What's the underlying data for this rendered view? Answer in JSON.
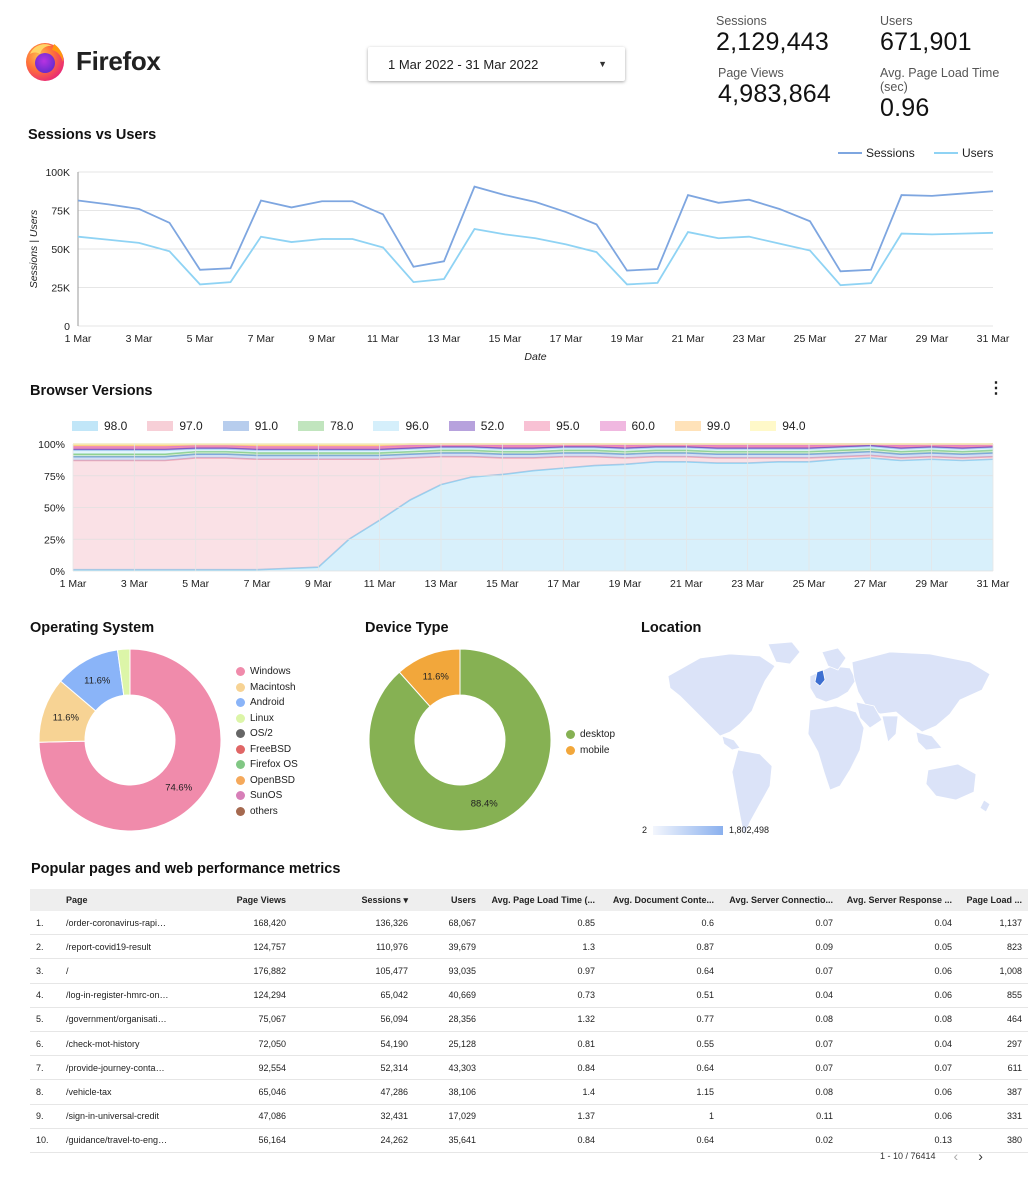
{
  "header": {
    "brand": "Firefox",
    "date_range": "1 Mar 2022 - 31 Mar 2022"
  },
  "kpis": {
    "sessions": {
      "label": "Sessions",
      "value": "2,129,443"
    },
    "users": {
      "label": "Users",
      "value": "671,901"
    },
    "page_views": {
      "label": "Page Views",
      "value": "4,983,864"
    },
    "load_time": {
      "label": "Avg. Page Load Time (sec)",
      "value": "0.96"
    }
  },
  "sections": {
    "sessions_users": "Sessions vs Users",
    "browser_versions": "Browser Versions",
    "os": "Operating System",
    "device": "Device Type",
    "location": "Location",
    "pages": "Popular pages and web performance metrics"
  },
  "colors": {
    "sessions": "#7ea6e0",
    "users": "#8fd3f4",
    "brand_orange": "#ff7139",
    "brand_purple": "#9059ff"
  },
  "chart_data": [
    {
      "type": "line",
      "title": "Sessions vs Users",
      "xlabel": "Date",
      "ylabel": "Sessions | Users",
      "ylim": [
        0,
        100000
      ],
      "yticks": [
        "0",
        "25K",
        "50K",
        "75K",
        "100K"
      ],
      "xticks": [
        "1 Mar",
        "3 Mar",
        "5 Mar",
        "7 Mar",
        "9 Mar",
        "11 Mar",
        "13 Mar",
        "15 Mar",
        "17 Mar",
        "19 Mar",
        "21 Mar",
        "23 Mar",
        "25 Mar",
        "27 Mar",
        "29 Mar",
        "31 Mar"
      ],
      "x": [
        1,
        2,
        3,
        4,
        5,
        6,
        7,
        8,
        9,
        10,
        11,
        12,
        13,
        14,
        15,
        16,
        17,
        18,
        19,
        20,
        21,
        22,
        23,
        24,
        25,
        26,
        27,
        28,
        29,
        30,
        31
      ],
      "legend": "top-right",
      "series": [
        {
          "name": "Sessions",
          "color": "#7ea6e0",
          "values": [
            81500,
            79000,
            76000,
            67000,
            36500,
            37500,
            81500,
            77000,
            81000,
            81000,
            72500,
            38500,
            42000,
            90500,
            85000,
            80500,
            74000,
            66000,
            36000,
            37000,
            85000,
            80000,
            82000,
            76000,
            68000,
            35500,
            36500,
            85000,
            84500,
            86000,
            87500
          ]
        },
        {
          "name": "Users",
          "color": "#8fd3f4",
          "values": [
            58000,
            56000,
            54000,
            48500,
            27000,
            28500,
            58000,
            54500,
            56500,
            56500,
            51000,
            28500,
            30500,
            63000,
            59500,
            57000,
            53000,
            48000,
            27000,
            28000,
            61000,
            57000,
            58000,
            53500,
            49000,
            26500,
            27800,
            60000,
            59500,
            60000,
            60500
          ]
        }
      ]
    },
    {
      "type": "area",
      "title": "Browser Versions",
      "stacked_percent": true,
      "ylim": [
        0,
        100
      ],
      "yticks": [
        "0%",
        "25%",
        "50%",
        "75%",
        "100%"
      ],
      "xticks": [
        "1 Mar",
        "3 Mar",
        "5 Mar",
        "7 Mar",
        "9 Mar",
        "11 Mar",
        "13 Mar",
        "15 Mar",
        "17 Mar",
        "19 Mar",
        "21 Mar",
        "23 Mar",
        "25 Mar",
        "27 Mar",
        "29 Mar",
        "31 Mar"
      ],
      "x": [
        1,
        2,
        3,
        4,
        5,
        6,
        7,
        8,
        9,
        10,
        11,
        12,
        13,
        14,
        15,
        16,
        17,
        18,
        19,
        20,
        21,
        22,
        23,
        24,
        25,
        26,
        27,
        28,
        29,
        30,
        31
      ],
      "legend": "top",
      "series": [
        {
          "name": "98.0",
          "color": "#8fd3f4",
          "values": [
            1,
            1,
            1,
            1,
            1,
            1,
            1,
            2,
            3,
            25,
            40,
            56,
            68,
            74,
            76,
            79,
            81,
            83,
            84,
            86,
            86,
            85,
            85,
            86,
            86,
            88,
            89,
            87,
            88,
            87,
            88
          ]
        },
        {
          "name": "97.0",
          "color": "#f1a9b8",
          "values": [
            86,
            86,
            86,
            86,
            88,
            88,
            87,
            86,
            85,
            63,
            48,
            33,
            22,
            16,
            13,
            10,
            9,
            7,
            5,
            4,
            4,
            4,
            4,
            3,
            3,
            2,
            2,
            2,
            2,
            2,
            2
          ]
        },
        {
          "name": "91.0",
          "color": "#7ea6e0",
          "values": [
            3,
            3,
            3,
            3,
            3,
            3,
            3,
            3,
            3,
            3,
            3,
            3,
            3,
            3,
            3,
            3,
            3,
            3,
            3,
            3,
            3,
            3,
            3,
            3,
            3,
            3,
            3,
            3,
            3,
            3,
            3
          ]
        },
        {
          "name": "78.0",
          "color": "#8fd18a",
          "values": [
            2,
            2,
            2,
            2,
            2,
            2,
            2,
            2,
            2,
            2,
            2,
            2,
            2,
            2,
            2,
            2,
            2,
            2,
            2,
            2,
            2,
            2,
            2,
            2,
            2,
            2,
            2,
            2,
            2,
            2,
            2
          ]
        },
        {
          "name": "96.0",
          "color": "#b3e2f8",
          "values": [
            3,
            3,
            3,
            3,
            2,
            2,
            2,
            2,
            2,
            2,
            2,
            2,
            2,
            2,
            2,
            2,
            2,
            2,
            2,
            2,
            2,
            2,
            2,
            2,
            2,
            2,
            2,
            2,
            2,
            2,
            2
          ]
        },
        {
          "name": "52.0",
          "color": "#7e57c2",
          "values": [
            1,
            1,
            1,
            1,
            1,
            1,
            1,
            1,
            1,
            1,
            1,
            1,
            1,
            1,
            1,
            1,
            1,
            1,
            1,
            1,
            1,
            1,
            1,
            1,
            1,
            1,
            1,
            1,
            1,
            1,
            1
          ]
        },
        {
          "name": "95.0",
          "color": "#f48fb1",
          "values": [
            1,
            1,
            1,
            1,
            1,
            1,
            1,
            1,
            1,
            1,
            1,
            1,
            1,
            1,
            1,
            1,
            1,
            1,
            1,
            1,
            1,
            1,
            1,
            1,
            1,
            1,
            1,
            1,
            1,
            1,
            1
          ]
        },
        {
          "name": "60.0",
          "color": "#e57fc8",
          "values": [
            1,
            1,
            1,
            1,
            1,
            1,
            1,
            1,
            1,
            1,
            1,
            1,
            1,
            1,
            1,
            1,
            1,
            1,
            1,
            1,
            1,
            1,
            1,
            1,
            1,
            1,
            1,
            1,
            1,
            1,
            1
          ]
        },
        {
          "name": "99.0",
          "color": "#ffcc80",
          "values": [
            1,
            1,
            1,
            1,
            0.5,
            0.5,
            1,
            1,
            1,
            1,
            1,
            1,
            1,
            1,
            1,
            1,
            1,
            1,
            1,
            1,
            1,
            1,
            1,
            1,
            1,
            1,
            1,
            1,
            1,
            1,
            1
          ]
        },
        {
          "name": "94.0",
          "color": "#fff59d",
          "values": [
            1,
            1,
            1,
            1,
            0.5,
            0.5,
            1,
            1,
            1,
            1,
            1,
            1,
            1,
            1,
            1,
            1,
            1,
            1,
            1,
            1,
            1,
            1,
            1,
            1,
            1,
            1,
            1,
            1,
            1,
            1,
            1
          ]
        }
      ]
    },
    {
      "type": "pie",
      "title": "Operating System",
      "donut": true,
      "legend": "right",
      "slices": [
        {
          "name": "Windows",
          "value": 74.6,
          "color": "#f08bab",
          "label": "74.6%"
        },
        {
          "name": "Macintosh",
          "value": 11.6,
          "color": "#f7d394",
          "label": "11.6%"
        },
        {
          "name": "Android",
          "value": 11.6,
          "color": "#8ab4f8",
          "label": "11.6%"
        },
        {
          "name": "Linux",
          "value": 2.2,
          "color": "#dcf5a8",
          "label": ""
        },
        {
          "name": "OS/2",
          "value": 0,
          "color": "#666666",
          "label": ""
        },
        {
          "name": "FreeBSD",
          "value": 0,
          "color": "#e06666",
          "label": ""
        },
        {
          "name": "Firefox OS",
          "value": 0,
          "color": "#81c784",
          "label": ""
        },
        {
          "name": "OpenBSD",
          "value": 0,
          "color": "#f5a95b",
          "label": ""
        },
        {
          "name": "SunOS",
          "value": 0,
          "color": "#d77fb8",
          "label": ""
        },
        {
          "name": "others",
          "value": 0,
          "color": "#a5694f",
          "label": ""
        }
      ]
    },
    {
      "type": "pie",
      "title": "Device Type",
      "donut": true,
      "legend": "right",
      "slices": [
        {
          "name": "desktop",
          "value": 88.4,
          "color": "#86b153",
          "label": "88.4%"
        },
        {
          "name": "mobile",
          "value": 11.6,
          "color": "#f2a73b",
          "label": "11.6%"
        }
      ]
    }
  ],
  "location": {
    "scale_min": "2",
    "scale_max": "1,802,498"
  },
  "table": {
    "columns": [
      "",
      "Page",
      "Page Views",
      "Sessions ▾",
      "Users",
      "Avg. Page Load Time (...",
      "Avg. Document Conte...",
      "Avg. Server Connectio...",
      "Avg. Server Response ...",
      "Page Load ..."
    ],
    "rows": [
      [
        "1.",
        "/order-coronavirus-rapid-l...",
        "168,420",
        "136,326",
        "68,067",
        "0.85",
        "0.6",
        "0.07",
        "0.04",
        "1,137"
      ],
      [
        "2.",
        "/report-covid19-result",
        "124,757",
        "110,976",
        "39,679",
        "1.3",
        "0.87",
        "0.09",
        "0.05",
        "823"
      ],
      [
        "3.",
        "/",
        "176,882",
        "105,477",
        "93,035",
        "0.97",
        "0.64",
        "0.07",
        "0.06",
        "1,008"
      ],
      [
        "4.",
        "/log-in-register-hmrc-onli...",
        "124,294",
        "65,042",
        "40,669",
        "0.73",
        "0.51",
        "0.04",
        "0.06",
        "855"
      ],
      [
        "5.",
        "/government/organisatio...",
        "75,067",
        "56,094",
        "28,356",
        "1.32",
        "0.77",
        "0.08",
        "0.08",
        "464"
      ],
      [
        "6.",
        "/check-mot-history",
        "72,050",
        "54,190",
        "25,128",
        "0.81",
        "0.55",
        "0.07",
        "0.04",
        "297"
      ],
      [
        "7.",
        "/provide-journey-contact-...",
        "92,554",
        "52,314",
        "43,303",
        "0.84",
        "0.64",
        "0.07",
        "0.07",
        "611"
      ],
      [
        "8.",
        "/vehicle-tax",
        "65,046",
        "47,286",
        "38,106",
        "1.4",
        "1.15",
        "0.08",
        "0.06",
        "387"
      ],
      [
        "9.",
        "/sign-in-universal-credit",
        "47,086",
        "32,431",
        "17,029",
        "1.37",
        "1",
        "0.11",
        "0.06",
        "331"
      ],
      [
        "10.",
        "/guidance/travel-to-engla...",
        "56,164",
        "24,262",
        "35,641",
        "0.84",
        "0.64",
        "0.02",
        "0.13",
        "380"
      ]
    ],
    "pagination": "1 - 10 / 76414",
    "prev_icon": "chevron-left-icon",
    "next_icon": "chevron-right-icon"
  }
}
